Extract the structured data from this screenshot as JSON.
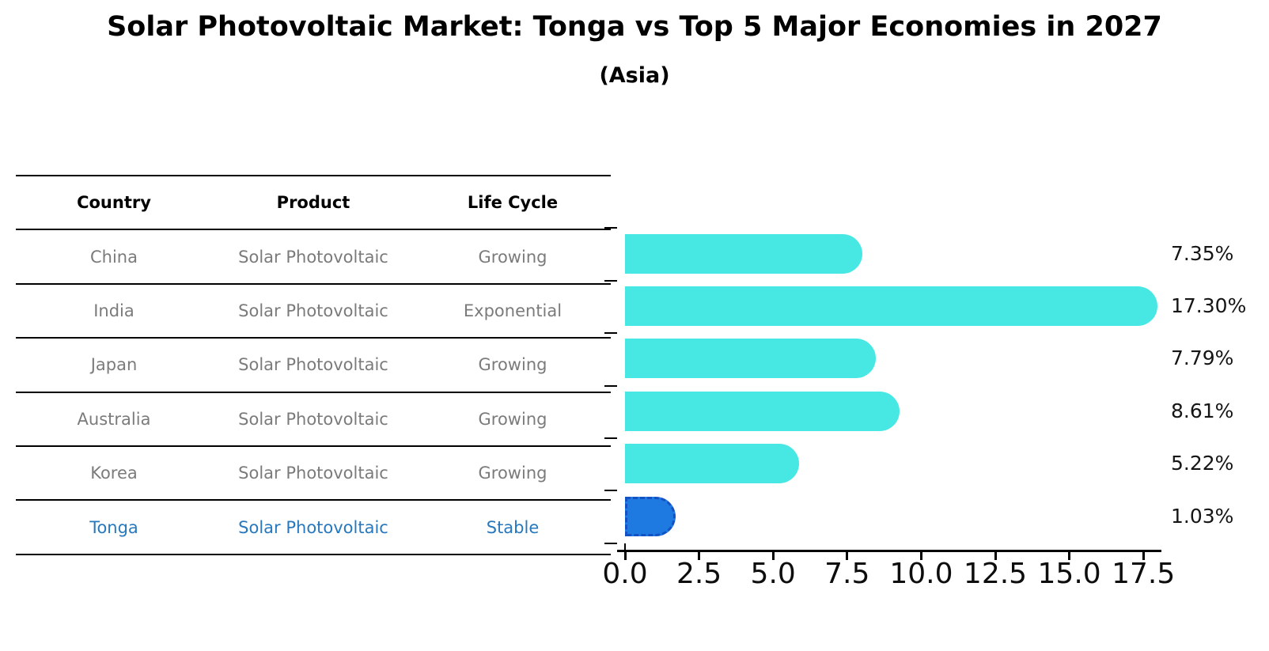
{
  "title": "Solar Photovoltaic Market: Tonga vs Top 5 Major Economies in 2027",
  "subtitle": "(Asia)",
  "table": {
    "headers": [
      "Country",
      "Product",
      "Life Cycle"
    ],
    "rows": [
      {
        "country": "China",
        "product": "Solar Photovoltaic",
        "life_cycle": "Growing",
        "highlight": false
      },
      {
        "country": "India",
        "product": "Solar Photovoltaic",
        "life_cycle": "Exponential",
        "highlight": false
      },
      {
        "country": "Japan",
        "product": "Solar Photovoltaic",
        "life_cycle": "Growing",
        "highlight": false
      },
      {
        "country": "Australia",
        "product": "Solar Photovoltaic",
        "life_cycle": "Growing",
        "highlight": false
      },
      {
        "country": "Korea",
        "product": "Solar Photovoltaic",
        "life_cycle": "Growing",
        "highlight": false
      },
      {
        "country": "Tonga",
        "product": "Solar Photovoltaic",
        "life_cycle": "Stable",
        "highlight": true
      }
    ]
  },
  "chart_data": {
    "type": "bar",
    "orientation": "horizontal",
    "title": "Solar Photovoltaic Market: Tonga vs Top 5 Major Economies in 2027",
    "subtitle": "(Asia)",
    "categories": [
      "China",
      "India",
      "Japan",
      "Australia",
      "Korea",
      "Tonga"
    ],
    "values": [
      7.35,
      17.3,
      7.79,
      8.61,
      5.22,
      1.03
    ],
    "value_labels": [
      "7.35%",
      "17.30%",
      "7.79%",
      "8.61%",
      "5.22%",
      "1.03%"
    ],
    "x_ticks": [
      "0.0",
      "2.5",
      "5.0",
      "7.5",
      "10.0",
      "12.5",
      "15.0",
      "17.5"
    ],
    "xlim": [
      0,
      18.1
    ],
    "grid": false,
    "legend": "none",
    "bar_color": "#47e8e3",
    "highlight_color": "#1e7ae0",
    "highlight_border_color": "#1452c4",
    "highlight_index": 5,
    "highlight_text_color": "#2878bd",
    "row_text_color": "#7b7b7b"
  }
}
